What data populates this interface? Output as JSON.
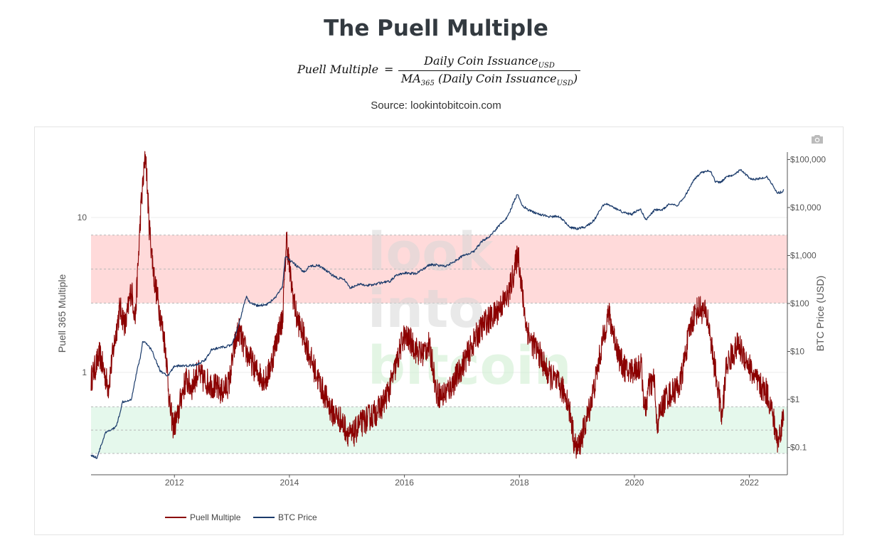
{
  "page": {
    "title": "The Puell Multiple",
    "formula": {
      "lhs": "Puell Multiple",
      "eq": "=",
      "numerator": "Daily Coin Issuance",
      "numerator_sub": "USD",
      "denominator_prefix": "MA",
      "denominator_prefix_sub": "365",
      "denominator_main": " (Daily Coin Issuance",
      "denominator_sub": "USD",
      "denominator_suffix": ")"
    },
    "source": "Source: lookintobitcoin.com"
  },
  "toolbar": {
    "camera_icon": "camera-icon"
  },
  "watermark": {
    "lines": [
      "look",
      "into",
      "bitcoin"
    ]
  },
  "colors": {
    "puell": "#8b0000",
    "btc": "#1b3b6b",
    "red_band": "#ffdada",
    "green_band": "#e5f8ec",
    "band_line": "#b7b7b7"
  },
  "chart_data": {
    "type": "line",
    "x_ticks": [
      "2012",
      "2014",
      "2016",
      "2018",
      "2020",
      "2022"
    ],
    "xlim": [
      "2010-08",
      "2022-08"
    ],
    "y_left": {
      "label": "Puell 365 Multiple",
      "scale": "log",
      "ticks": [
        "1",
        "10"
      ],
      "range": [
        0.2,
        40
      ]
    },
    "y_right": {
      "label": "BTC Price (USD)",
      "scale": "log",
      "ticks": [
        "$0.1",
        "$1",
        "$10",
        "$100",
        "$1,000",
        "$10,000",
        "$100,000"
      ],
      "range": [
        0.05,
        150000
      ]
    },
    "bands": [
      {
        "name": "high",
        "from": 2.8,
        "to": 7.7,
        "color": "#ffdada"
      },
      {
        "name": "low",
        "from": 0.3,
        "to": 0.6,
        "color": "#e5f8ec"
      }
    ],
    "series": [
      {
        "name": "Puell Multiple",
        "axis": "left",
        "color": "#8b0000",
        "points": [
          [
            2010.55,
            0.9
          ],
          [
            2010.7,
            1.3
          ],
          [
            2010.85,
            0.8
          ],
          [
            2010.95,
            1.5
          ],
          [
            2011.05,
            2.6
          ],
          [
            2011.15,
            2.0
          ],
          [
            2011.25,
            3.5
          ],
          [
            2011.32,
            2.2
          ],
          [
            2011.42,
            12
          ],
          [
            2011.5,
            26
          ],
          [
            2011.56,
            9
          ],
          [
            2011.65,
            4
          ],
          [
            2011.75,
            2.4
          ],
          [
            2011.85,
            1.4
          ],
          [
            2011.92,
            0.6
          ],
          [
            2011.98,
            0.45
          ],
          [
            2012.05,
            0.5
          ],
          [
            2012.12,
            0.7
          ],
          [
            2012.2,
            0.9
          ],
          [
            2012.3,
            0.8
          ],
          [
            2012.4,
            1.0
          ],
          [
            2012.5,
            0.9
          ],
          [
            2012.62,
            0.85
          ],
          [
            2012.72,
            0.8
          ],
          [
            2012.82,
            0.75
          ],
          [
            2012.95,
            0.85
          ],
          [
            2013.05,
            1.5
          ],
          [
            2013.12,
            1.9
          ],
          [
            2013.2,
            1.5
          ],
          [
            2013.27,
            1.3
          ],
          [
            2013.33,
            1.2
          ],
          [
            2013.4,
            1.05
          ],
          [
            2013.5,
            0.95
          ],
          [
            2013.6,
            0.9
          ],
          [
            2013.7,
            1.2
          ],
          [
            2013.8,
            1.8
          ],
          [
            2013.88,
            2.2
          ],
          [
            2013.95,
            7.5
          ],
          [
            2014.02,
            4
          ],
          [
            2014.12,
            2.3
          ],
          [
            2014.25,
            1.7
          ],
          [
            2014.38,
            1.2
          ],
          [
            2014.5,
            0.9
          ],
          [
            2014.62,
            0.7
          ],
          [
            2014.75,
            0.55
          ],
          [
            2014.88,
            0.5
          ],
          [
            2015.0,
            0.42
          ],
          [
            2015.08,
            0.38
          ],
          [
            2015.2,
            0.45
          ],
          [
            2015.35,
            0.5
          ],
          [
            2015.5,
            0.55
          ],
          [
            2015.62,
            0.62
          ],
          [
            2015.75,
            0.8
          ],
          [
            2015.88,
            1.2
          ],
          [
            2015.98,
            1.7
          ],
          [
            2016.1,
            1.6
          ],
          [
            2016.2,
            1.4
          ],
          [
            2016.3,
            1.3
          ],
          [
            2016.42,
            1.5
          ],
          [
            2016.5,
            1.1
          ],
          [
            2016.55,
            0.75
          ],
          [
            2016.65,
            0.7
          ],
          [
            2016.8,
            0.8
          ],
          [
            2016.95,
            1.0
          ],
          [
            2017.1,
            1.3
          ],
          [
            2017.25,
            1.7
          ],
          [
            2017.4,
            2.1
          ],
          [
            2017.55,
            2.3
          ],
          [
            2017.68,
            2.7
          ],
          [
            2017.8,
            3.1
          ],
          [
            2017.92,
            4.7
          ],
          [
            2017.98,
            6.0
          ],
          [
            2018.05,
            3.2
          ],
          [
            2018.12,
            2.0
          ],
          [
            2018.2,
            1.6
          ],
          [
            2018.35,
            1.3
          ],
          [
            2018.48,
            1.0
          ],
          [
            2018.6,
            0.9
          ],
          [
            2018.72,
            0.8
          ],
          [
            2018.82,
            0.7
          ],
          [
            2018.9,
            0.5
          ],
          [
            2018.96,
            0.34
          ],
          [
            2019.02,
            0.32
          ],
          [
            2019.1,
            0.4
          ],
          [
            2019.2,
            0.55
          ],
          [
            2019.3,
            0.8
          ],
          [
            2019.42,
            1.4
          ],
          [
            2019.5,
            2.0
          ],
          [
            2019.55,
            2.4
          ],
          [
            2019.65,
            1.7
          ],
          [
            2019.75,
            1.2
          ],
          [
            2019.88,
            1.0
          ],
          [
            2020.0,
            1.05
          ],
          [
            2020.12,
            1.1
          ],
          [
            2020.18,
            0.55
          ],
          [
            2020.25,
            0.8
          ],
          [
            2020.35,
            0.9
          ],
          [
            2020.38,
            0.45
          ],
          [
            2020.45,
            0.55
          ],
          [
            2020.55,
            0.7
          ],
          [
            2020.68,
            0.75
          ],
          [
            2020.8,
            0.85
          ],
          [
            2020.9,
            1.4
          ],
          [
            2020.98,
            2.0
          ],
          [
            2021.05,
            2.4
          ],
          [
            2021.12,
            2.6
          ],
          [
            2021.2,
            2.5
          ],
          [
            2021.28,
            2.2
          ],
          [
            2021.35,
            1.4
          ],
          [
            2021.45,
            0.8
          ],
          [
            2021.52,
            0.5
          ],
          [
            2021.6,
            1.1
          ],
          [
            2021.7,
            1.3
          ],
          [
            2021.8,
            1.5
          ],
          [
            2021.9,
            1.3
          ],
          [
            2022.0,
            1.1
          ],
          [
            2022.1,
            0.9
          ],
          [
            2022.2,
            0.8
          ],
          [
            2022.3,
            0.75
          ],
          [
            2022.4,
            0.55
          ],
          [
            2022.45,
            0.42
          ],
          [
            2022.5,
            0.35
          ],
          [
            2022.55,
            0.45
          ],
          [
            2022.6,
            0.52
          ]
        ]
      },
      {
        "name": "BTC Price",
        "axis": "right",
        "color": "#1b3b6b",
        "points": [
          [
            2010.55,
            0.07
          ],
          [
            2010.65,
            0.06
          ],
          [
            2010.8,
            0.2
          ],
          [
            2010.95,
            0.25
          ],
          [
            2011.0,
            0.3
          ],
          [
            2011.1,
            0.9
          ],
          [
            2011.25,
            1.0
          ],
          [
            2011.35,
            4
          ],
          [
            2011.42,
            9
          ],
          [
            2011.45,
            17
          ],
          [
            2011.5,
            15
          ],
          [
            2011.6,
            11
          ],
          [
            2011.75,
            4
          ],
          [
            2011.88,
            3
          ],
          [
            2012.0,
            5
          ],
          [
            2012.2,
            5
          ],
          [
            2012.4,
            5.3
          ],
          [
            2012.55,
            7
          ],
          [
            2012.65,
            11
          ],
          [
            2012.8,
            12
          ],
          [
            2013.0,
            13.5
          ],
          [
            2013.1,
            30
          ],
          [
            2013.25,
            140
          ],
          [
            2013.32,
            100
          ],
          [
            2013.45,
            90
          ],
          [
            2013.6,
            95
          ],
          [
            2013.75,
            130
          ],
          [
            2013.88,
            220
          ],
          [
            2013.93,
            1000
          ],
          [
            2014.0,
            800
          ],
          [
            2014.1,
            650
          ],
          [
            2014.25,
            450
          ],
          [
            2014.35,
            600
          ],
          [
            2014.5,
            620
          ],
          [
            2014.65,
            480
          ],
          [
            2014.8,
            350
          ],
          [
            2014.95,
            320
          ],
          [
            2015.05,
            210
          ],
          [
            2015.2,
            250
          ],
          [
            2015.4,
            240
          ],
          [
            2015.6,
            270
          ],
          [
            2015.75,
            290
          ],
          [
            2015.85,
            380
          ],
          [
            2016.0,
            430
          ],
          [
            2016.2,
            420
          ],
          [
            2016.45,
            650
          ],
          [
            2016.55,
            640
          ],
          [
            2016.7,
            600
          ],
          [
            2016.85,
            720
          ],
          [
            2017.0,
            960
          ],
          [
            2017.2,
            1200
          ],
          [
            2017.35,
            2000
          ],
          [
            2017.5,
            2600
          ],
          [
            2017.65,
            4300
          ],
          [
            2017.8,
            6500
          ],
          [
            2017.92,
            15000
          ],
          [
            2017.97,
            19000
          ],
          [
            2018.05,
            11000
          ],
          [
            2018.15,
            9000
          ],
          [
            2018.3,
            7500
          ],
          [
            2018.5,
            6500
          ],
          [
            2018.7,
            6500
          ],
          [
            2018.88,
            3800
          ],
          [
            2019.0,
            3600
          ],
          [
            2019.15,
            3900
          ],
          [
            2019.3,
            5500
          ],
          [
            2019.45,
            11000
          ],
          [
            2019.5,
            12000
          ],
          [
            2019.65,
            10000
          ],
          [
            2019.8,
            8000
          ],
          [
            2019.95,
            7200
          ],
          [
            2020.1,
            9500
          ],
          [
            2020.2,
            5500
          ],
          [
            2020.35,
            8800
          ],
          [
            2020.5,
            9200
          ],
          [
            2020.6,
            11500
          ],
          [
            2020.75,
            11000
          ],
          [
            2020.85,
            15000
          ],
          [
            2020.95,
            24000
          ],
          [
            2021.05,
            40000
          ],
          [
            2021.15,
            52000
          ],
          [
            2021.25,
            58000
          ],
          [
            2021.33,
            55000
          ],
          [
            2021.4,
            36000
          ],
          [
            2021.5,
            33000
          ],
          [
            2021.6,
            45000
          ],
          [
            2021.72,
            48000
          ],
          [
            2021.85,
            62000
          ],
          [
            2021.95,
            47000
          ],
          [
            2022.05,
            38000
          ],
          [
            2022.2,
            41000
          ],
          [
            2022.3,
            44000
          ],
          [
            2022.4,
            30000
          ],
          [
            2022.48,
            20000
          ],
          [
            2022.55,
            21000
          ],
          [
            2022.6,
            23000
          ]
        ]
      }
    ],
    "legend": {
      "position": "bottom-left",
      "items": [
        "Puell Multiple",
        "BTC Price"
      ]
    }
  }
}
